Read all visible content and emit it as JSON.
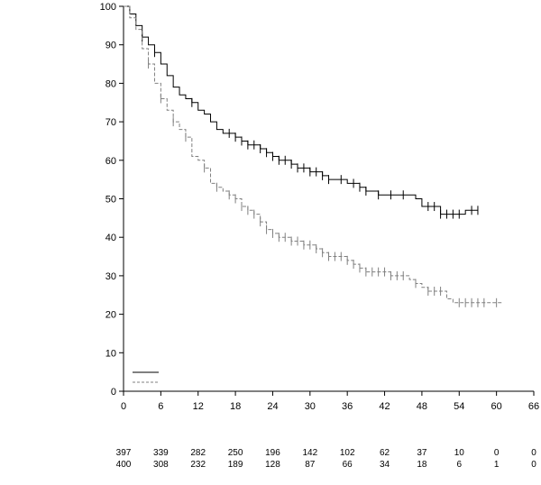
{
  "chart_data": {
    "type": "line",
    "title": "",
    "xlabel": "",
    "ylabel": "",
    "xlim": [
      0,
      66
    ],
    "ylim": [
      0,
      100
    ],
    "x_ticks": [
      0,
      6,
      12,
      18,
      24,
      30,
      36,
      42,
      48,
      54,
      60,
      66
    ],
    "y_ticks": [
      0,
      10,
      20,
      30,
      40,
      50,
      60,
      70,
      80,
      90,
      100
    ],
    "grid": false,
    "legend": "bottom-left",
    "series": [
      {
        "style": "solid",
        "color": "#000000",
        "points": [
          [
            0,
            100
          ],
          [
            1,
            98
          ],
          [
            2,
            95
          ],
          [
            3,
            92
          ],
          [
            4,
            90
          ],
          [
            5,
            88
          ],
          [
            6,
            85
          ],
          [
            7,
            82
          ],
          [
            8,
            79
          ],
          [
            9,
            77
          ],
          [
            10,
            76
          ],
          [
            11,
            75
          ],
          [
            12,
            73
          ],
          [
            13,
            72
          ],
          [
            14,
            70
          ],
          [
            15,
            68
          ],
          [
            16,
            67
          ],
          [
            17,
            67
          ],
          [
            18,
            66
          ],
          [
            19,
            65
          ],
          [
            20,
            64
          ],
          [
            21,
            64
          ],
          [
            22,
            63
          ],
          [
            23,
            62
          ],
          [
            24,
            61
          ],
          [
            25,
            60
          ],
          [
            26,
            60
          ],
          [
            27,
            59
          ],
          [
            28,
            58
          ],
          [
            29,
            58
          ],
          [
            30,
            57
          ],
          [
            31,
            57
          ],
          [
            32,
            56
          ],
          [
            33,
            55
          ],
          [
            34,
            55
          ],
          [
            35,
            55
          ],
          [
            36,
            54
          ],
          [
            37,
            54
          ],
          [
            38,
            53
          ],
          [
            39,
            52
          ],
          [
            40,
            52
          ],
          [
            41,
            51
          ],
          [
            42,
            51
          ],
          [
            43,
            51
          ],
          [
            44,
            51
          ],
          [
            45,
            51
          ],
          [
            46,
            51
          ],
          [
            47,
            50
          ],
          [
            48,
            48
          ],
          [
            49,
            48
          ],
          [
            50,
            48
          ],
          [
            51,
            46
          ],
          [
            52,
            46
          ],
          [
            53,
            46
          ],
          [
            54,
            46
          ],
          [
            55,
            47
          ],
          [
            56,
            47
          ],
          [
            57,
            47
          ]
        ],
        "censor_ticks": [
          3,
          5,
          11,
          17,
          18,
          19,
          20,
          21,
          22,
          23,
          24,
          25,
          26,
          27,
          28,
          29,
          30,
          31,
          32,
          33,
          35,
          37,
          38,
          39,
          41,
          43,
          45,
          49,
          50,
          51,
          52,
          53,
          54,
          56,
          57
        ]
      },
      {
        "style": "dashed",
        "color": "#808080",
        "points": [
          [
            0,
            100
          ],
          [
            1,
            97
          ],
          [
            2,
            94
          ],
          [
            3,
            89
          ],
          [
            4,
            85
          ],
          [
            5,
            80
          ],
          [
            6,
            76
          ],
          [
            7,
            73
          ],
          [
            8,
            70
          ],
          [
            9,
            68
          ],
          [
            10,
            66
          ],
          [
            11,
            61
          ],
          [
            12,
            60
          ],
          [
            13,
            58
          ],
          [
            14,
            54
          ],
          [
            15,
            53
          ],
          [
            16,
            52
          ],
          [
            17,
            51
          ],
          [
            18,
            50
          ],
          [
            19,
            48
          ],
          [
            20,
            47
          ],
          [
            21,
            46
          ],
          [
            22,
            44
          ],
          [
            23,
            42
          ],
          [
            24,
            41
          ],
          [
            25,
            40
          ],
          [
            26,
            40
          ],
          [
            27,
            39
          ],
          [
            28,
            39
          ],
          [
            29,
            38
          ],
          [
            30,
            38
          ],
          [
            31,
            37
          ],
          [
            32,
            36
          ],
          [
            33,
            35
          ],
          [
            34,
            35
          ],
          [
            35,
            35
          ],
          [
            36,
            34
          ],
          [
            37,
            33
          ],
          [
            38,
            32
          ],
          [
            39,
            31
          ],
          [
            40,
            31
          ],
          [
            41,
            31
          ],
          [
            42,
            31
          ],
          [
            43,
            30
          ],
          [
            44,
            30
          ],
          [
            45,
            30
          ],
          [
            46,
            29
          ],
          [
            47,
            28
          ],
          [
            48,
            27
          ],
          [
            49,
            26
          ],
          [
            50,
            26
          ],
          [
            51,
            26
          ],
          [
            52,
            24
          ],
          [
            53,
            23
          ],
          [
            54,
            23
          ],
          [
            55,
            23
          ],
          [
            56,
            23
          ],
          [
            57,
            23
          ],
          [
            58,
            23
          ],
          [
            59,
            23
          ],
          [
            60,
            23
          ],
          [
            61,
            23
          ]
        ],
        "censor_ticks": [
          4,
          6,
          8,
          10,
          13,
          15,
          17,
          18,
          19,
          20,
          21,
          22,
          23,
          24,
          25,
          26,
          27,
          28,
          29,
          30,
          31,
          32,
          33,
          34,
          35,
          36,
          37,
          38,
          39,
          40,
          41,
          42,
          43,
          44,
          45,
          47,
          49,
          50,
          51,
          54,
          55,
          56,
          57,
          58,
          60
        ]
      }
    ],
    "risk_table": {
      "x": [
        0,
        6,
        12,
        18,
        24,
        30,
        36,
        42,
        48,
        54,
        60,
        66
      ],
      "rows": [
        [
          397,
          339,
          282,
          250,
          196,
          142,
          102,
          62,
          37,
          10,
          0,
          0
        ],
        [
          400,
          308,
          232,
          189,
          128,
          87,
          66,
          34,
          18,
          6,
          1,
          0
        ]
      ]
    }
  }
}
